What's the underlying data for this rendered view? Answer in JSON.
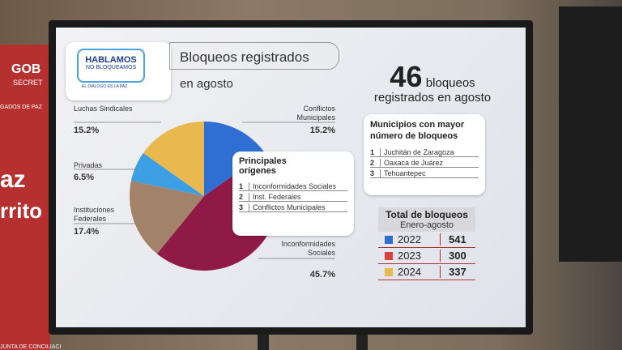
{
  "chart_data": {
    "type": "pie",
    "title": "Bloqueos registrados",
    "subtitle": "en agosto",
    "categories": [
      "Conflictos Municipales",
      "Inconformidades Sociales",
      "Instituciones Federales",
      "Privadas",
      "Luchas Sindicales"
    ],
    "values": [
      15.2,
      45.7,
      17.4,
      6.5,
      15.2
    ],
    "value_labels": [
      "15.2%",
      "45.7%",
      "17.4%",
      "6.5%",
      "15.2%"
    ],
    "colors": [
      "#2f6fd3",
      "#8e1a45",
      "#a3826a",
      "#3d9fe3",
      "#e9b94f"
    ]
  },
  "logo": {
    "line1": "HABLAMOS",
    "line2": "NO BLOQUEAMOS",
    "tagline": "EL DIÁLOGO ES LA PAZ"
  },
  "headline": {
    "number": "46",
    "unit": "bloqueos",
    "caption": "registrados en agosto"
  },
  "origins": {
    "title": "Principales orígenes",
    "rows": [
      [
        "1",
        "Inconformidades Sociales"
      ],
      [
        "2",
        "Inst. Federales"
      ],
      [
        "3",
        "Conflictos Municipales"
      ]
    ]
  },
  "municipalities": {
    "title": "Municipios con mayor número de bloqueos",
    "rows": [
      [
        "1",
        "Juchitán de Zaragoza"
      ],
      [
        "2",
        "Oaxaca de Juárez"
      ],
      [
        "3",
        "Tehuantepec"
      ]
    ]
  },
  "totals": {
    "title": "Total de bloqueos",
    "subtitle": "Enero-agosto",
    "rows": [
      [
        "2022",
        "541"
      ],
      [
        "2023",
        "300"
      ],
      [
        "2024",
        "337"
      ]
    ],
    "colors": [
      "#2f6fd3",
      "#d9413a",
      "#e9b94f"
    ]
  },
  "banner": {
    "line1": "GOB",
    "line2": "SECRET",
    "line3": "GADOS DE PAZ",
    "line4": "az",
    "line5": "rrito",
    "line6": "JUNTA DE CONCILIACI"
  }
}
